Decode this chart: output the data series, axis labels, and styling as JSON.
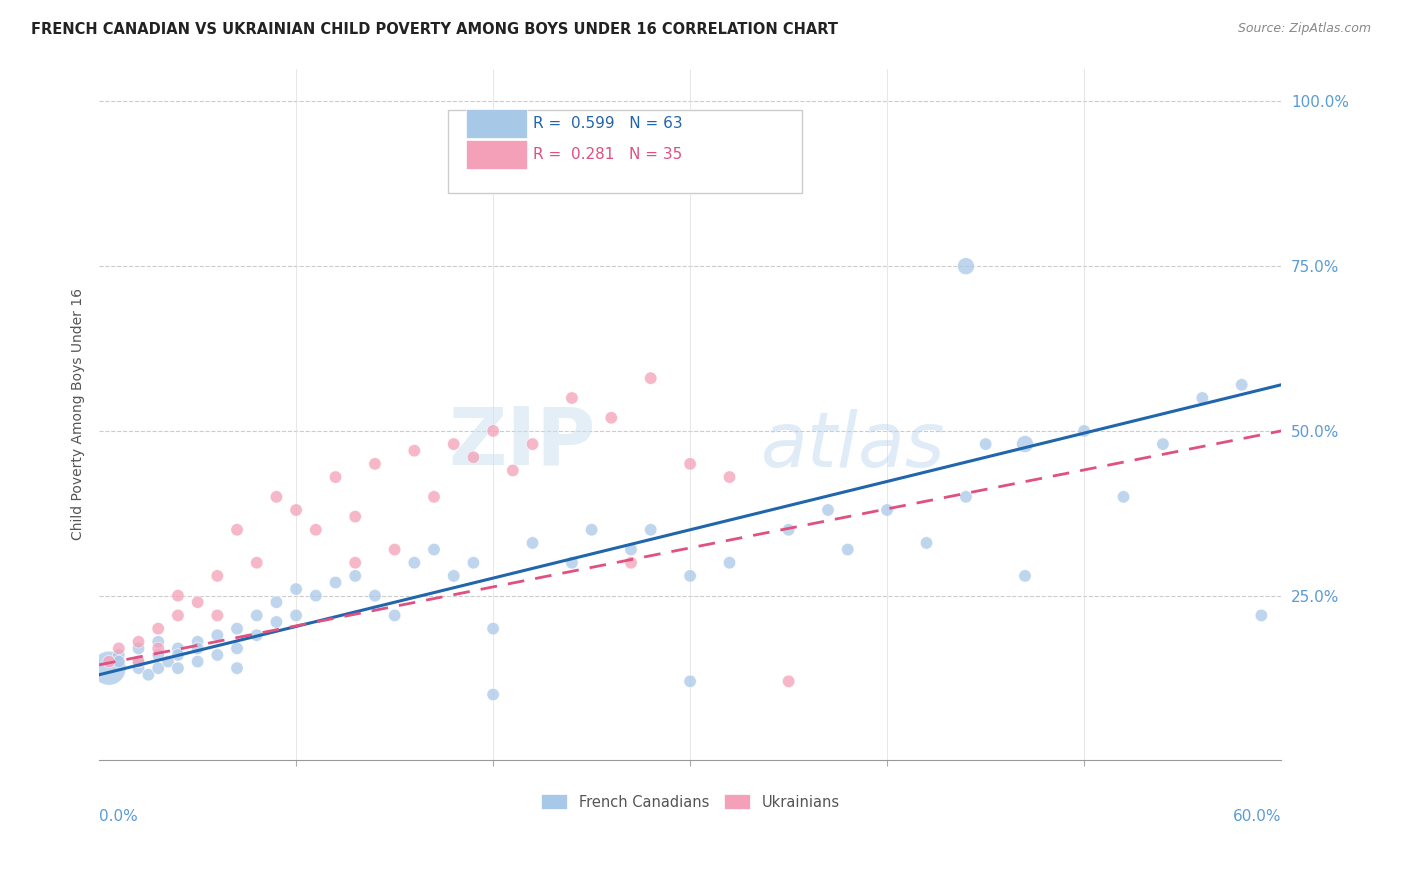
{
  "title": "FRENCH CANADIAN VS UKRAINIAN CHILD POVERTY AMONG BOYS UNDER 16 CORRELATION CHART",
  "source": "Source: ZipAtlas.com",
  "ylabel": "Child Poverty Among Boys Under 16",
  "xlim": [
    0.0,
    0.6
  ],
  "ylim": [
    0.0,
    1.05
  ],
  "french_color": "#a8c8e8",
  "ukrainian_color": "#f4a0b8",
  "french_line_color": "#2166ac",
  "ukrainian_line_color": "#e05080",
  "background_color": "#ffffff",
  "grid_color": "#cccccc",
  "axis_label_color": "#5b9bd5",
  "fc_x": [
    0.005,
    0.01,
    0.01,
    0.02,
    0.02,
    0.02,
    0.025,
    0.03,
    0.03,
    0.03,
    0.035,
    0.04,
    0.04,
    0.04,
    0.05,
    0.05,
    0.05,
    0.06,
    0.06,
    0.07,
    0.07,
    0.07,
    0.08,
    0.08,
    0.09,
    0.09,
    0.1,
    0.1,
    0.11,
    0.12,
    0.13,
    0.14,
    0.15,
    0.16,
    0.17,
    0.18,
    0.19,
    0.2,
    0.22,
    0.24,
    0.25,
    0.27,
    0.28,
    0.3,
    0.32,
    0.35,
    0.37,
    0.38,
    0.4,
    0.42,
    0.44,
    0.45,
    0.47,
    0.5,
    0.52,
    0.54,
    0.56,
    0.58,
    0.59,
    0.44,
    0.47,
    0.3,
    0.2
  ],
  "fc_y": [
    0.14,
    0.16,
    0.15,
    0.14,
    0.17,
    0.15,
    0.13,
    0.16,
    0.14,
    0.18,
    0.15,
    0.17,
    0.14,
    0.16,
    0.18,
    0.15,
    0.17,
    0.19,
    0.16,
    0.2,
    0.17,
    0.14,
    0.22,
    0.19,
    0.24,
    0.21,
    0.26,
    0.22,
    0.25,
    0.27,
    0.28,
    0.25,
    0.22,
    0.3,
    0.32,
    0.28,
    0.3,
    0.2,
    0.33,
    0.3,
    0.35,
    0.32,
    0.35,
    0.28,
    0.3,
    0.35,
    0.38,
    0.32,
    0.38,
    0.33,
    0.4,
    0.48,
    0.28,
    0.5,
    0.4,
    0.48,
    0.55,
    0.57,
    0.22,
    0.75,
    0.48,
    0.12,
    0.1
  ],
  "fc_sizes": [
    600,
    80,
    80,
    80,
    80,
    80,
    80,
    80,
    80,
    80,
    80,
    80,
    80,
    80,
    80,
    80,
    80,
    80,
    80,
    80,
    80,
    80,
    80,
    80,
    80,
    80,
    80,
    80,
    80,
    80,
    80,
    80,
    80,
    80,
    80,
    80,
    80,
    80,
    80,
    80,
    80,
    80,
    80,
    80,
    80,
    80,
    80,
    80,
    80,
    80,
    80,
    80,
    80,
    80,
    80,
    80,
    80,
    80,
    80,
    150,
    150,
    80,
    80
  ],
  "uk_x": [
    0.005,
    0.01,
    0.02,
    0.02,
    0.03,
    0.03,
    0.04,
    0.04,
    0.05,
    0.06,
    0.06,
    0.07,
    0.08,
    0.09,
    0.1,
    0.11,
    0.12,
    0.13,
    0.13,
    0.14,
    0.15,
    0.16,
    0.17,
    0.18,
    0.19,
    0.2,
    0.21,
    0.22,
    0.24,
    0.26,
    0.27,
    0.28,
    0.3,
    0.32,
    0.35
  ],
  "uk_y": [
    0.15,
    0.17,
    0.15,
    0.18,
    0.17,
    0.2,
    0.22,
    0.25,
    0.24,
    0.22,
    0.28,
    0.35,
    0.3,
    0.4,
    0.38,
    0.35,
    0.43,
    0.37,
    0.3,
    0.45,
    0.32,
    0.47,
    0.4,
    0.48,
    0.46,
    0.5,
    0.44,
    0.48,
    0.55,
    0.52,
    0.3,
    0.58,
    0.45,
    0.43,
    0.12
  ],
  "uk_sizes": [
    80,
    80,
    80,
    80,
    80,
    80,
    80,
    80,
    80,
    80,
    80,
    80,
    80,
    80,
    80,
    80,
    80,
    80,
    80,
    80,
    80,
    80,
    80,
    80,
    80,
    80,
    80,
    80,
    80,
    80,
    80,
    80,
    80,
    80,
    80
  ],
  "fc_line_x0": 0.0,
  "fc_line_x1": 0.6,
  "fc_line_y0": 0.13,
  "fc_line_y1": 0.57,
  "uk_line_x0": 0.0,
  "uk_line_x1": 0.6,
  "uk_line_y0": 0.145,
  "uk_line_y1": 0.5
}
